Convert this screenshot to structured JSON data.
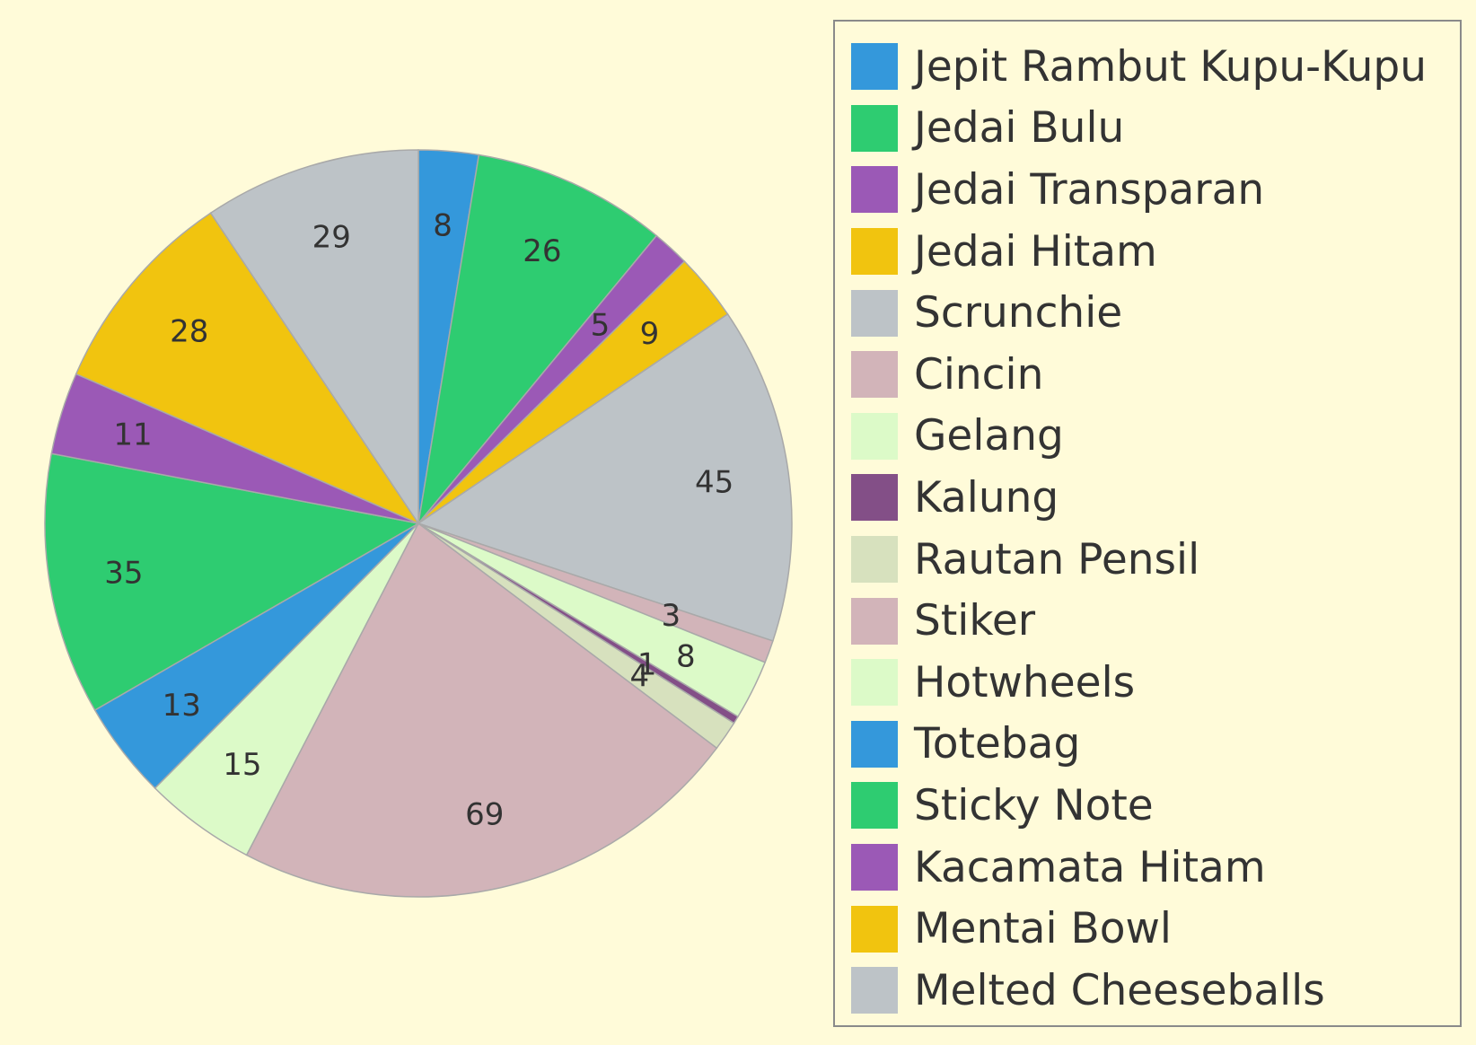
{
  "chart_data": {
    "type": "pie",
    "title": "",
    "slices": [
      {
        "label": "Jepit Rambut Kupu-Kupu",
        "value": 8,
        "color": "#3498db"
      },
      {
        "label": "Jedai Bulu",
        "value": 26,
        "color": "#2ecc71"
      },
      {
        "label": "Jedai Transparan",
        "value": 5,
        "color": "#9b59b6"
      },
      {
        "label": "Jedai Hitam",
        "value": 9,
        "color": "#f1c40f"
      },
      {
        "label": "Scrunchie",
        "value": 45,
        "color": "#bdc3c7"
      },
      {
        "label": "Cincin",
        "value": 3,
        "color": "#d2b4b9"
      },
      {
        "label": "Gelang",
        "value": 8,
        "color": "#dcfac8"
      },
      {
        "label": "Kalung",
        "value": 1,
        "color": "#834f87"
      },
      {
        "label": "Rautan Pensil",
        "value": 4,
        "color": "#d7e1be"
      },
      {
        "label": "Stiker",
        "value": 69,
        "color": "#d2b4b9"
      },
      {
        "label": "Hotwheels",
        "value": 15,
        "color": "#dcfac8"
      },
      {
        "label": "Totebag",
        "value": 13,
        "color": "#3498db"
      },
      {
        "label": "Sticky Note",
        "value": 35,
        "color": "#2ecc71"
      },
      {
        "label": "Kacamata Hitam",
        "value": 11,
        "color": "#9b59b6"
      },
      {
        "label": "Mentai Bowl",
        "value": 28,
        "color": "#f1c40f"
      },
      {
        "label": "Melted Cheeseballs",
        "value": 29,
        "color": "#bdc3c7"
      }
    ],
    "legend": "right"
  }
}
